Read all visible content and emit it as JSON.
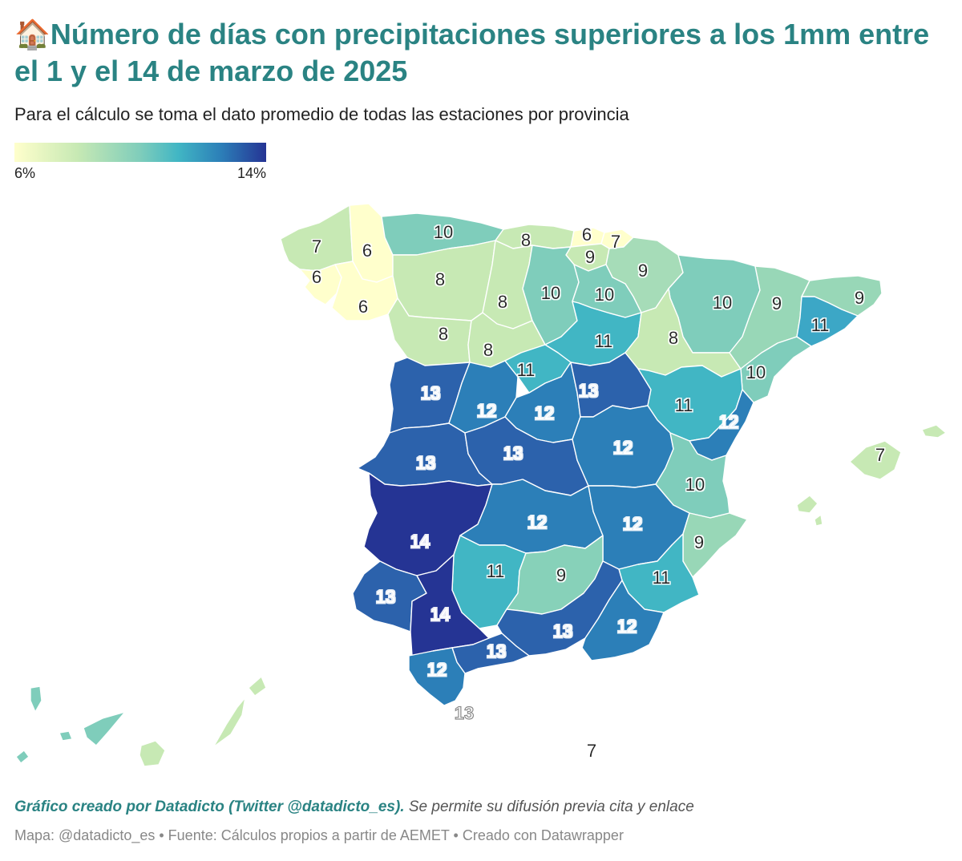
{
  "title": {
    "icon": "house-icon",
    "icon_glyph": "🏠",
    "text": "Número de días con precipitaciones superiores a los 1mm entre el 1 y el 14 de marzo de 2025"
  },
  "subtitle": "Para el cálculo se toma el dato promedio de todas las estaciones por provincia",
  "legend": {
    "min_label": "6%",
    "max_label": "14%",
    "colors": [
      "#ffffcc",
      "#c7e9b4",
      "#7fcdbb",
      "#41b6c4",
      "#2c7fb8",
      "#253494"
    ]
  },
  "map": {
    "values": {
      "a_coruna": "7",
      "lugo": "6",
      "pontevedra": "6",
      "ourense": "6",
      "asturias": "10",
      "cantabria": "8",
      "bizkaia": "6",
      "gipuzkoa": "7",
      "alava": "9",
      "navarra": "9",
      "leon": "8",
      "palencia": "8",
      "burgos": "10",
      "la_rioja": "10",
      "huesca": "10",
      "lleida": "9",
      "girona": "9",
      "barcelona": "11",
      "zamora": "8",
      "valladolid": "8",
      "soria": "11",
      "zaragoza": "8",
      "tarragona": "10",
      "salamanca": "13",
      "avila": "12",
      "segovia": "11",
      "madrid": "12",
      "guadalajara": "13",
      "teruel": "11",
      "castellon": "12",
      "caceres": "13",
      "toledo": "13",
      "cuenca": "12",
      "valencia": "10",
      "illes_balears": "7",
      "badajoz": "14",
      "ciudad_real": "12",
      "albacete": "12",
      "alicante": "9",
      "cordoba": "11",
      "jaen": "9",
      "murcia": "11",
      "huelva": "13",
      "sevilla": "14",
      "granada": "13",
      "almeria": "12",
      "malaga": "13",
      "cadiz": "12",
      "ceuta": "13",
      "melilla": "7"
    }
  },
  "footer": {
    "credit_bold": "Gráfico creado por Datadicto (Twitter @datadicto_es).",
    "credit_rest": " Se permite su difusión previa cita y enlace",
    "source": "Mapa: @datadicto_es • Fuente: Cálculos propios a partir de AEMET • Creado con Datawrapper"
  }
}
